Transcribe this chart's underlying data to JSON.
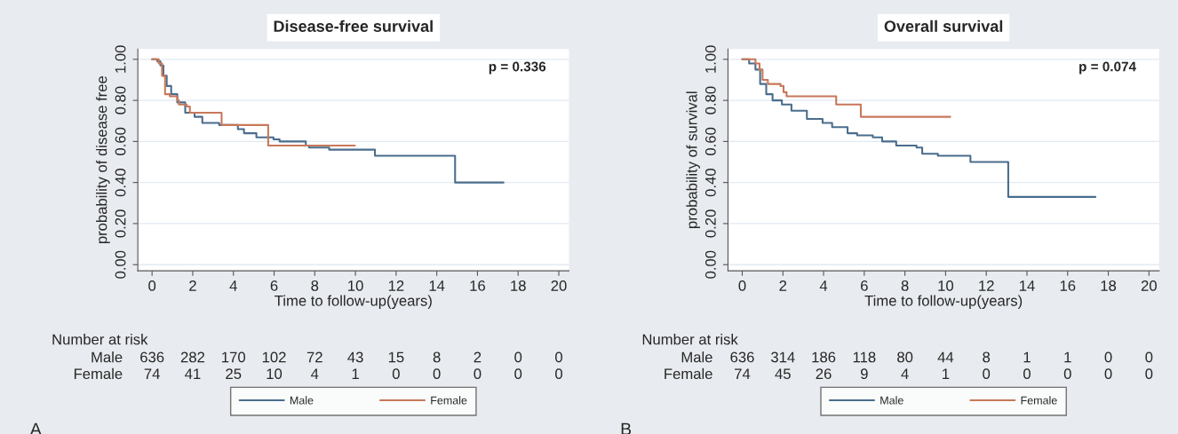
{
  "chart_data": [
    {
      "type": "step",
      "title": "Disease-free survival",
      "xlabel": "Time to follow-up(years)",
      "ylabel": "probability of disease free",
      "xlim": [
        -0.7,
        20.5
      ],
      "ylim": [
        -0.03,
        1.05
      ],
      "xticks": [
        0,
        2,
        4,
        6,
        8,
        10,
        12,
        14,
        16,
        18,
        20
      ],
      "yticks": [
        {
          "value": 0,
          "label": "0.00"
        },
        {
          "value": 0.2,
          "label": "0.20"
        },
        {
          "value": 0.4,
          "label": "0.40"
        },
        {
          "value": 0.6,
          "label": "0.60"
        },
        {
          "value": 0.8,
          "label": "0.80"
        },
        {
          "value": 1,
          "label": "1.00"
        }
      ],
      "grid": "y",
      "legend": "bottom",
      "series": [
        {
          "name": "Male",
          "color": "#4a6d8c",
          "x": [
            0,
            0.26,
            0.41,
            0.56,
            0.72,
            0.94,
            1.24,
            1.63,
            2.09,
            2.47,
            3.3,
            4.22,
            4.52,
            5.13,
            5.97,
            6.27,
            7.56,
            7.72,
            8.71,
            10.96,
            14.9,
            17.28
          ],
          "values": [
            1.0,
            0.99,
            0.97,
            0.92,
            0.87,
            0.83,
            0.79,
            0.74,
            0.72,
            0.69,
            0.68,
            0.66,
            0.64,
            0.62,
            0.61,
            0.6,
            0.58,
            0.57,
            0.56,
            0.53,
            0.4,
            0.4
          ]
        },
        {
          "name": "Female",
          "color": "#c8785a",
          "x": [
            0,
            0.33,
            0.49,
            0.64,
            0.87,
            1.25,
            1.32,
            1.7,
            1.86,
            3.42,
            5.71,
            6.58,
            9.97
          ],
          "values": [
            1.0,
            0.98,
            0.92,
            0.83,
            0.82,
            0.8,
            0.78,
            0.77,
            0.74,
            0.68,
            0.58,
            0.58,
            0.58
          ]
        }
      ],
      "annotations": [
        "p = 0.336",
        "Number at risk",
        "Male",
        "Female",
        "A",
        "636",
        "282",
        "170",
        "102",
        "72",
        "43",
        "15",
        "8",
        "2",
        "0",
        "0",
        "74",
        "41",
        "25",
        "10",
        "4",
        "1",
        "0",
        "0",
        "0",
        "0",
        "0"
      ]
    },
    {
      "type": "step",
      "title": "Overall survival",
      "xlabel": "Time to follow-up(years)",
      "ylabel": "probability of survival",
      "xlim": [
        -0.7,
        20.5
      ],
      "ylim": [
        -0.03,
        1.05
      ],
      "xticks": [
        0,
        2,
        4,
        6,
        8,
        10,
        12,
        14,
        16,
        18,
        20
      ],
      "yticks": [
        {
          "value": 0,
          "label": "0.00"
        },
        {
          "value": 0.2,
          "label": "0.20"
        },
        {
          "value": 0.4,
          "label": "0.40"
        },
        {
          "value": 0.6,
          "label": "0.60"
        },
        {
          "value": 0.8,
          "label": "0.80"
        },
        {
          "value": 1,
          "label": "1.00"
        }
      ],
      "grid": "y",
      "legend": "bottom",
      "series": [
        {
          "name": "Male",
          "color": "#4a6d8c",
          "x": [
            0,
            0.34,
            0.65,
            0.88,
            1.18,
            1.49,
            1.95,
            2.42,
            3.18,
            3.95,
            4.42,
            5.18,
            5.65,
            6.42,
            6.88,
            7.57,
            8.57,
            8.85,
            9.62,
            11.22,
            13.08,
            17.37
          ],
          "values": [
            1.0,
            0.98,
            0.95,
            0.88,
            0.83,
            0.8,
            0.78,
            0.75,
            0.71,
            0.69,
            0.67,
            0.64,
            0.63,
            0.62,
            0.6,
            0.58,
            0.57,
            0.54,
            0.53,
            0.5,
            0.33,
            0.33
          ]
        },
        {
          "name": "Female",
          "color": "#c8785a",
          "x": [
            0,
            0.65,
            0.85,
            1.0,
            1.26,
            1.88,
            2.03,
            2.18,
            4.62,
            5.83,
            10.23
          ],
          "values": [
            1.0,
            0.98,
            0.95,
            0.9,
            0.88,
            0.87,
            0.84,
            0.82,
            0.78,
            0.72,
            0.72
          ]
        }
      ],
      "annotations": [
        "p = 0.074",
        "Number at risk",
        "Male",
        "Female",
        "B",
        "636",
        "314",
        "186",
        "118",
        "80",
        "44",
        "8",
        "1",
        "1",
        "0",
        "0",
        "74",
        "45",
        "26",
        "9",
        "4",
        "1",
        "0",
        "0",
        "0",
        "0",
        "0"
      ]
    }
  ]
}
